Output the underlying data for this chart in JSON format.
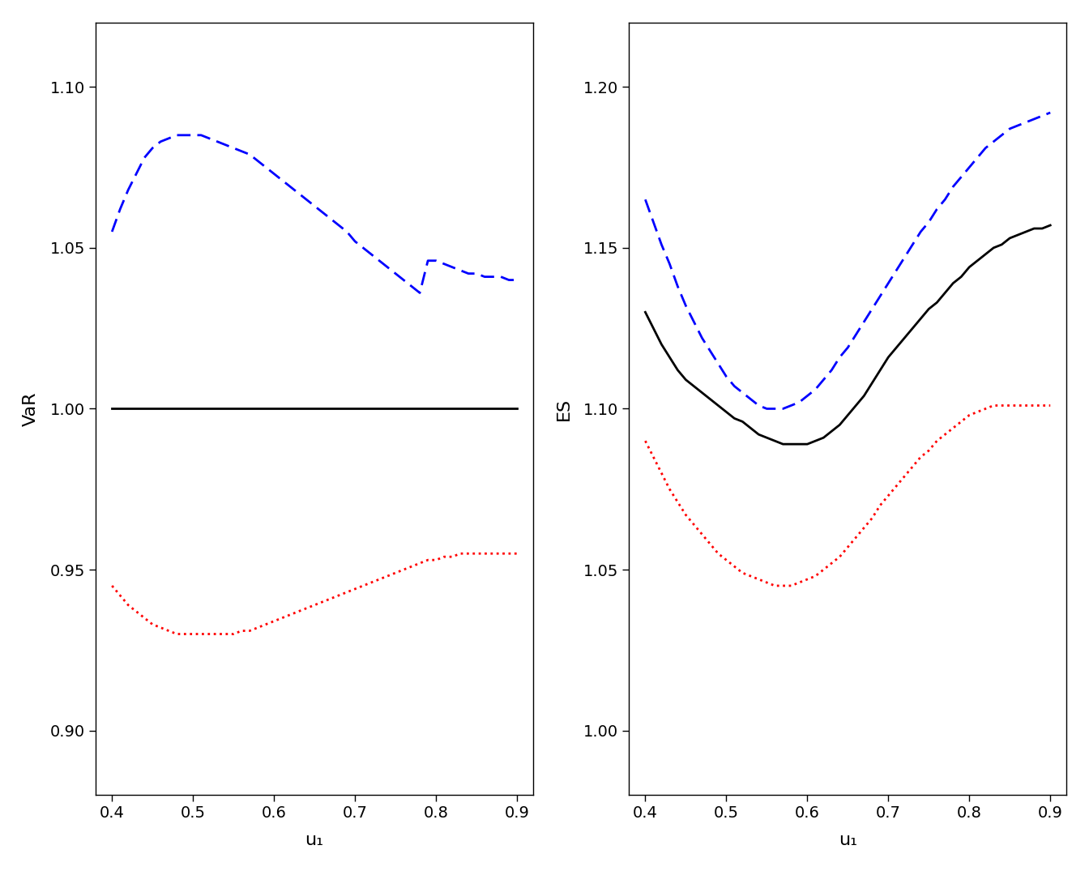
{
  "u1": [
    0.4,
    0.41,
    0.42,
    0.43,
    0.44,
    0.45,
    0.46,
    0.47,
    0.48,
    0.49,
    0.5,
    0.51,
    0.52,
    0.53,
    0.54,
    0.55,
    0.56,
    0.57,
    0.58,
    0.59,
    0.6,
    0.61,
    0.62,
    0.63,
    0.64,
    0.65,
    0.66,
    0.67,
    0.68,
    0.69,
    0.7,
    0.71,
    0.72,
    0.73,
    0.74,
    0.75,
    0.76,
    0.77,
    0.78,
    0.79,
    0.8,
    0.81,
    0.82,
    0.83,
    0.84,
    0.85,
    0.86,
    0.87,
    0.88,
    0.89,
    0.9
  ],
  "var_black": [
    1.0,
    1.0,
    1.0,
    1.0,
    1.0,
    1.0,
    1.0,
    1.0,
    1.0,
    1.0,
    1.0,
    1.0,
    1.0,
    1.0,
    1.0,
    1.0,
    1.0,
    1.0,
    1.0,
    1.0,
    1.0,
    1.0,
    1.0,
    1.0,
    1.0,
    1.0,
    1.0,
    1.0,
    1.0,
    1.0,
    1.0,
    1.0,
    1.0,
    1.0,
    1.0,
    1.0,
    1.0,
    1.0,
    1.0,
    1.0,
    1.0,
    1.0,
    1.0,
    1.0,
    1.0,
    1.0,
    1.0,
    1.0,
    1.0,
    1.0,
    1.0
  ],
  "var_blue": [
    1.055,
    1.062,
    1.068,
    1.073,
    1.078,
    1.081,
    1.083,
    1.084,
    1.085,
    1.085,
    1.085,
    1.085,
    1.084,
    1.083,
    1.082,
    1.081,
    1.08,
    1.079,
    1.077,
    1.075,
    1.073,
    1.071,
    1.069,
    1.067,
    1.065,
    1.063,
    1.061,
    1.059,
    1.057,
    1.055,
    1.052,
    1.05,
    1.048,
    1.046,
    1.044,
    1.042,
    1.04,
    1.038,
    1.036,
    1.046,
    1.046,
    1.045,
    1.044,
    1.043,
    1.042,
    1.042,
    1.041,
    1.041,
    1.041,
    1.04,
    1.04
  ],
  "var_red": [
    0.945,
    0.942,
    0.939,
    0.937,
    0.935,
    0.933,
    0.932,
    0.931,
    0.93,
    0.93,
    0.93,
    0.93,
    0.93,
    0.93,
    0.93,
    0.93,
    0.931,
    0.931,
    0.932,
    0.933,
    0.934,
    0.935,
    0.936,
    0.937,
    0.938,
    0.939,
    0.94,
    0.941,
    0.942,
    0.943,
    0.944,
    0.945,
    0.946,
    0.947,
    0.948,
    0.949,
    0.95,
    0.951,
    0.952,
    0.953,
    0.953,
    0.954,
    0.954,
    0.955,
    0.955,
    0.955,
    0.955,
    0.955,
    0.955,
    0.955,
    0.955
  ],
  "es_black": [
    1.13,
    1.125,
    1.12,
    1.116,
    1.112,
    1.109,
    1.107,
    1.105,
    1.103,
    1.101,
    1.099,
    1.097,
    1.096,
    1.094,
    1.092,
    1.091,
    1.09,
    1.089,
    1.089,
    1.089,
    1.089,
    1.09,
    1.091,
    1.093,
    1.095,
    1.098,
    1.101,
    1.104,
    1.108,
    1.112,
    1.116,
    1.119,
    1.122,
    1.125,
    1.128,
    1.131,
    1.133,
    1.136,
    1.139,
    1.141,
    1.144,
    1.146,
    1.148,
    1.15,
    1.151,
    1.153,
    1.154,
    1.155,
    1.156,
    1.156,
    1.157
  ],
  "es_blue": [
    1.165,
    1.158,
    1.151,
    1.145,
    1.138,
    1.132,
    1.127,
    1.122,
    1.118,
    1.114,
    1.11,
    1.107,
    1.105,
    1.103,
    1.101,
    1.1,
    1.1,
    1.1,
    1.101,
    1.102,
    1.104,
    1.106,
    1.109,
    1.112,
    1.116,
    1.119,
    1.123,
    1.127,
    1.131,
    1.135,
    1.139,
    1.143,
    1.147,
    1.151,
    1.155,
    1.158,
    1.162,
    1.165,
    1.169,
    1.172,
    1.175,
    1.178,
    1.181,
    1.183,
    1.185,
    1.187,
    1.188,
    1.189,
    1.19,
    1.191,
    1.192
  ],
  "es_red": [
    1.09,
    1.085,
    1.08,
    1.075,
    1.071,
    1.067,
    1.064,
    1.061,
    1.058,
    1.055,
    1.053,
    1.051,
    1.049,
    1.048,
    1.047,
    1.046,
    1.045,
    1.045,
    1.045,
    1.046,
    1.047,
    1.048,
    1.05,
    1.052,
    1.054,
    1.057,
    1.06,
    1.063,
    1.066,
    1.07,
    1.073,
    1.076,
    1.079,
    1.082,
    1.085,
    1.087,
    1.09,
    1.092,
    1.094,
    1.096,
    1.098,
    1.099,
    1.1,
    1.101,
    1.101,
    1.101,
    1.101,
    1.101,
    1.101,
    1.101,
    1.101
  ],
  "var_ylim": [
    0.88,
    1.12
  ],
  "var_yticks": [
    0.9,
    0.95,
    1.0,
    1.05,
    1.1
  ],
  "es_ylim": [
    0.98,
    1.22
  ],
  "es_yticks": [
    1.0,
    1.05,
    1.1,
    1.15,
    1.2
  ],
  "xlim": [
    0.38,
    0.92
  ],
  "xticks": [
    0.4,
    0.5,
    0.6,
    0.7,
    0.8,
    0.9
  ],
  "xlabel": "u₁",
  "var_ylabel": "VaR",
  "es_ylabel": "ES",
  "black_color": "#000000",
  "blue_color": "#0000FF",
  "red_color": "#FF0000",
  "linewidth": 2.0,
  "background_color": "#FFFFFF"
}
